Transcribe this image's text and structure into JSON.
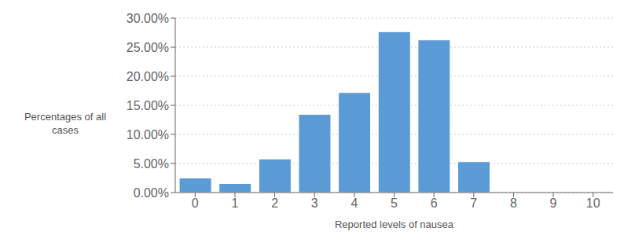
{
  "chart_data": {
    "type": "bar",
    "categories": [
      0,
      1,
      2,
      3,
      4,
      5,
      6,
      7,
      8,
      9,
      10
    ],
    "values": [
      2.5,
      1.56,
      5.78,
      13.44,
      17.19,
      27.66,
      26.25,
      5.31,
      0.0,
      0.0,
      0.0
    ],
    "color": "#5B9BD5",
    "xlabel": "Reported levels of nausea",
    "ylabel": "Percentages of all\ncases",
    "ylim": [
      0,
      30.0
    ],
    "yticks": [
      {
        "value": 0,
        "label": "0.00%"
      },
      {
        "value": 5,
        "label": "5.00%"
      },
      {
        "value": 10,
        "label": "10.00%"
      },
      {
        "value": 15,
        "label": "15.00%"
      },
      {
        "value": 20,
        "label": "20.00%"
      },
      {
        "value": 25,
        "label": "25.00%"
      },
      {
        "value": 30,
        "label": "30.00%"
      }
    ],
    "grid": true
  }
}
